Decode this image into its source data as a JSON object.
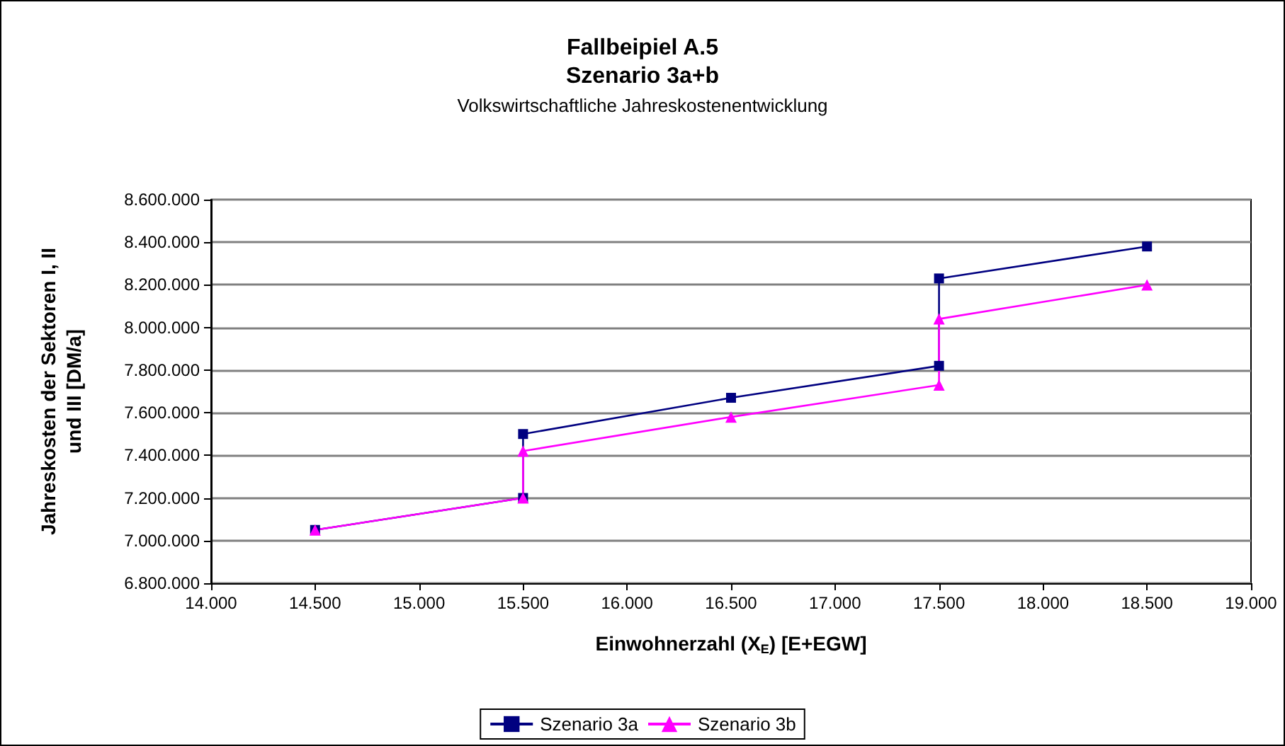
{
  "chart_data": {
    "type": "line",
    "title": "Fallbeipiel A.5\nSzenario 3a+b",
    "subtitle": "Volkswirtschaftliche Jahreskostenentwicklung",
    "xlabel": "Einwohnerzahl (X$_{E}$) [E+EGW]",
    "ylabel": "Jahreskosten der Sektoren I, II\nund III [DM/a]",
    "series": [
      {
        "name": "Szenario 3a",
        "color": "#000080",
        "marker": "square",
        "x": [
          14500,
          15500,
          15500,
          16500,
          17500,
          17500,
          18500
        ],
        "values": [
          7050000,
          7200000,
          7500000,
          7670000,
          7820000,
          8230000,
          8380000
        ]
      },
      {
        "name": "Szenario 3b",
        "color": "#ff00ff",
        "marker": "triangle",
        "x": [
          14500,
          15500,
          15500,
          16500,
          17500,
          17500,
          18500
        ],
        "values": [
          7050000,
          7200000,
          7420000,
          7580000,
          7730000,
          8040000,
          8200000
        ]
      }
    ],
    "xlim": [
      14000,
      19000
    ],
    "xticks": [
      {
        "value": 14000,
        "label": "14.000"
      },
      {
        "value": 14500,
        "label": "14.500"
      },
      {
        "value": 15000,
        "label": "15.000"
      },
      {
        "value": 15500,
        "label": "15.500"
      },
      {
        "value": 16000,
        "label": "16.000"
      },
      {
        "value": 16500,
        "label": "16.500"
      },
      {
        "value": 17000,
        "label": "17.000"
      },
      {
        "value": 17500,
        "label": "17.500"
      },
      {
        "value": 18000,
        "label": "18.000"
      },
      {
        "value": 18500,
        "label": "18.500"
      },
      {
        "value": 19000,
        "label": "19.000"
      }
    ],
    "ylim": [
      6800000,
      8600000
    ],
    "yticks": [
      {
        "value": 6800000,
        "label": "6.800.000"
      },
      {
        "value": 7000000,
        "label": "7.000.000"
      },
      {
        "value": 7200000,
        "label": "7.200.000"
      },
      {
        "value": 7400000,
        "label": "7.400.000"
      },
      {
        "value": 7600000,
        "label": "7.600.000"
      },
      {
        "value": 7800000,
        "label": "7.800.000"
      },
      {
        "value": 8000000,
        "label": "8.000.000"
      },
      {
        "value": 8200000,
        "label": "8.200.000"
      },
      {
        "value": 8400000,
        "label": "8.400.000"
      },
      {
        "value": 8600000,
        "label": "8.600.000"
      }
    ],
    "grid": "y",
    "legend": "bottom",
    "line_style": "solid"
  }
}
